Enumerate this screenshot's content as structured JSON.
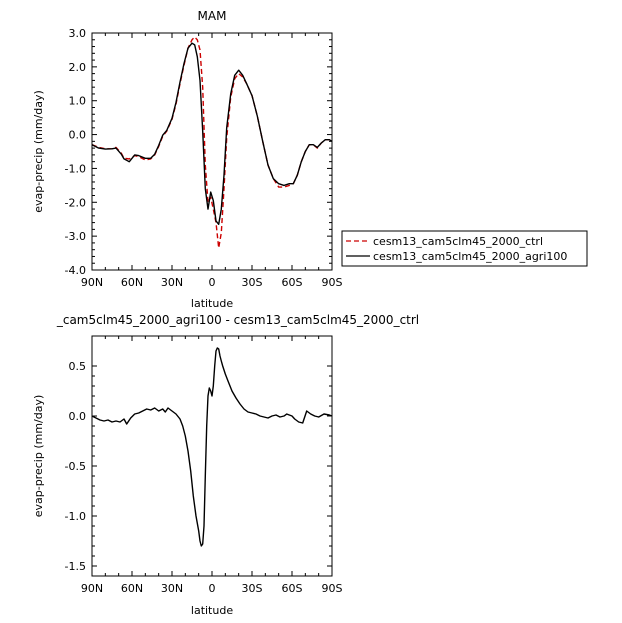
{
  "chart_data": [
    {
      "type": "line",
      "title": "MAM",
      "xlabel": "latitude",
      "ylabel": "evap-precip (mm/day)",
      "xlim": [
        90,
        -90
      ],
      "ylim": [
        -4.0,
        3.0
      ],
      "xticks": [
        90,
        60,
        30,
        0,
        -30,
        -60,
        -90
      ],
      "xtick_labels": [
        "90N",
        "60N",
        "30N",
        "0",
        "30S",
        "60S",
        "90S"
      ],
      "yticks": [
        3,
        2,
        1,
        0,
        -1,
        -2,
        -3,
        -4
      ],
      "ytick_labels": [
        "3.0",
        "2.0",
        "1.0",
        "0.0",
        "-1.0",
        "-2.0",
        "-3.0",
        "-4.0"
      ],
      "legend_position": "outside-right",
      "series": [
        {
          "name": "cesm13_cam5clm45_2000_ctrl",
          "color": "#cc0000",
          "style": "dashed",
          "x": [
            90,
            85,
            80,
            75,
            72,
            68,
            66,
            62,
            58,
            55,
            50,
            46,
            43,
            40,
            37,
            34,
            30,
            27,
            24,
            21,
            18,
            15,
            13,
            11,
            9,
            7,
            5,
            3,
            1,
            -1,
            -3,
            -5,
            -7,
            -9,
            -11,
            -14,
            -17,
            -20,
            -23,
            -26,
            -30,
            -34,
            -38,
            -42,
            -46,
            -50,
            -54,
            -58,
            -61,
            -64,
            -67,
            -70,
            -73,
            -76,
            -79,
            -82,
            -85,
            -88,
            -90
          ],
          "y": [
            -0.3,
            -0.38,
            -0.42,
            -0.42,
            -0.38,
            -0.55,
            -0.7,
            -0.72,
            -0.62,
            -0.65,
            -0.75,
            -0.72,
            -0.6,
            -0.35,
            -0.05,
            0.1,
            0.45,
            0.9,
            1.5,
            2.05,
            2.55,
            2.8,
            2.88,
            2.8,
            2.5,
            1.4,
            -0.9,
            -2.0,
            -1.85,
            -2.2,
            -2.6,
            -3.35,
            -2.9,
            -1.6,
            -0.1,
            1.1,
            1.65,
            1.8,
            1.7,
            1.5,
            1.15,
            0.55,
            -0.2,
            -0.9,
            -1.3,
            -1.55,
            -1.55,
            -1.5,
            -1.45,
            -1.2,
            -0.8,
            -0.5,
            -0.3,
            -0.3,
            -0.4,
            -0.25,
            -0.15,
            -0.15,
            -0.2
          ]
        },
        {
          "name": "cesm13_cam5clm45_2000_agri100",
          "color": "#000000",
          "style": "solid",
          "x": [
            90,
            85,
            80,
            75,
            72,
            68,
            66,
            62,
            58,
            55,
            50,
            46,
            43,
            40,
            37,
            34,
            30,
            27,
            24,
            21,
            18,
            15,
            13,
            11,
            9,
            7,
            5,
            3,
            1,
            -1,
            -3,
            -5,
            -7,
            -9,
            -11,
            -14,
            -17,
            -20,
            -23,
            -26,
            -30,
            -34,
            -38,
            -42,
            -46,
            -50,
            -54,
            -58,
            -61,
            -64,
            -67,
            -70,
            -73,
            -76,
            -79,
            -82,
            -85,
            -88,
            -90
          ],
          "y": [
            -0.3,
            -0.4,
            -0.43,
            -0.42,
            -0.4,
            -0.58,
            -0.72,
            -0.8,
            -0.6,
            -0.62,
            -0.7,
            -0.7,
            -0.58,
            -0.32,
            -0.02,
            0.12,
            0.48,
            0.95,
            1.55,
            2.1,
            2.55,
            2.7,
            2.65,
            2.3,
            1.6,
            0.1,
            -1.6,
            -2.2,
            -1.7,
            -1.95,
            -2.55,
            -2.65,
            -2.2,
            -1.2,
            0.2,
            1.2,
            1.75,
            1.9,
            1.75,
            1.5,
            1.15,
            0.55,
            -0.2,
            -0.9,
            -1.3,
            -1.45,
            -1.5,
            -1.45,
            -1.45,
            -1.2,
            -0.8,
            -0.5,
            -0.3,
            -0.3,
            -0.38,
            -0.25,
            -0.15,
            -0.15,
            -0.2
          ]
        }
      ]
    },
    {
      "type": "line",
      "title": "_cam5clm45_2000_agri100 - cesm13_cam5clm45_2000_ctrl",
      "xlabel": "latitude",
      "ylabel": "evap-precip (mm/day)",
      "xlim": [
        90,
        -90
      ],
      "ylim": [
        -1.6,
        0.8
      ],
      "xticks": [
        90,
        60,
        30,
        0,
        -30,
        -60,
        -90
      ],
      "xtick_labels": [
        "90N",
        "60N",
        "30N",
        "0",
        "30S",
        "60S",
        "90S"
      ],
      "yticks": [
        0.5,
        0.0,
        -0.5,
        -1.0,
        -1.5
      ],
      "ytick_labels": [
        "0.5",
        "0.0",
        "-0.5",
        "-1.0",
        "-1.5"
      ],
      "series": [
        {
          "color": "#000000",
          "style": "solid",
          "x": [
            90,
            87,
            84,
            81,
            78,
            75,
            72,
            69,
            66,
            64,
            61,
            58,
            55,
            52,
            49,
            46,
            43,
            40,
            37,
            35,
            33,
            30,
            27,
            24,
            22,
            20,
            18,
            16,
            14,
            12,
            10,
            9,
            8,
            7,
            6,
            5,
            4,
            3,
            2,
            1,
            0,
            -1,
            -2,
            -3,
            -4,
            -5,
            -6,
            -7,
            -8,
            -10,
            -12,
            -15,
            -18,
            -21,
            -24,
            -27,
            -30,
            -33,
            -36,
            -39,
            -42,
            -45,
            -48,
            -51,
            -54,
            -56,
            -58,
            -60,
            -62,
            -65,
            -68,
            -71,
            -74,
            -77,
            -80,
            -84,
            -88,
            -90
          ],
          "y": [
            0.0,
            -0.02,
            -0.04,
            -0.05,
            -0.04,
            -0.06,
            -0.05,
            -0.06,
            -0.03,
            -0.08,
            -0.02,
            0.02,
            0.03,
            0.05,
            0.07,
            0.06,
            0.08,
            0.05,
            0.07,
            0.04,
            0.08,
            0.05,
            0.02,
            -0.03,
            -0.1,
            -0.2,
            -0.35,
            -0.55,
            -0.8,
            -1.0,
            -1.15,
            -1.25,
            -1.3,
            -1.28,
            -1.1,
            -0.6,
            -0.1,
            0.2,
            0.28,
            0.25,
            0.2,
            0.3,
            0.5,
            0.65,
            0.68,
            0.67,
            0.6,
            0.55,
            0.5,
            0.42,
            0.35,
            0.25,
            0.18,
            0.12,
            0.07,
            0.04,
            0.03,
            0.02,
            0.0,
            -0.01,
            -0.02,
            0.0,
            0.01,
            -0.01,
            0.0,
            0.02,
            0.01,
            0.0,
            -0.03,
            -0.06,
            -0.07,
            0.05,
            0.02,
            0.0,
            -0.01,
            0.02,
            0.01,
            0.0
          ]
        }
      ]
    }
  ]
}
